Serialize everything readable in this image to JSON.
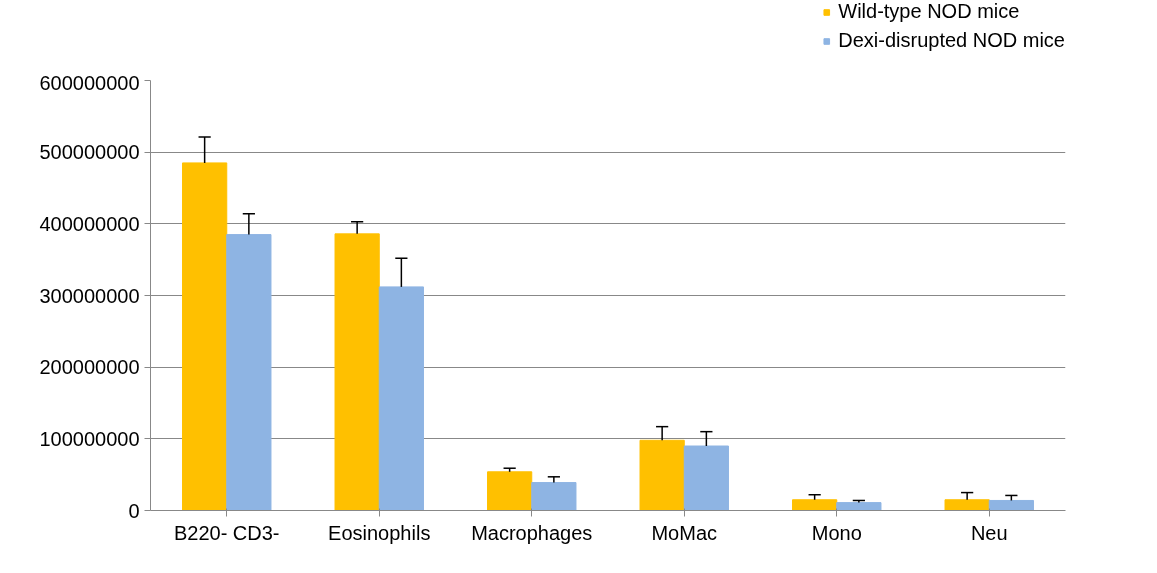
{
  "chart_data": {
    "type": "bar",
    "categories": [
      "B220- CD3-",
      "Eosinophils",
      "Macrophages",
      "MoMac",
      "Mono",
      "Neu"
    ],
    "series": [
      {
        "name": "Wild-type NOD mice",
        "color": "#ffc000",
        "values": [
          485000000,
          386000000,
          54000000,
          98000000,
          15000000,
          15000000
        ],
        "errors": [
          [
            485000000,
            521000000
          ],
          [
            386000000,
            403000000
          ],
          [
            54000000,
            59000000
          ],
          [
            98000000,
            117000000
          ],
          [
            15000000,
            22000000
          ],
          [
            15000000,
            25000000
          ]
        ]
      },
      {
        "name": "Dexi-disrupted NOD mice",
        "color": "#8eb4e3",
        "values": [
          385000000,
          312000000,
          39000000,
          90000000,
          11000000,
          14000000
        ],
        "errors": [
          [
            385000000,
            414000000
          ],
          [
            312000000,
            352000000
          ],
          [
            39000000,
            47000000
          ],
          [
            90000000,
            110000000
          ],
          [
            11000000,
            14000000
          ],
          [
            14000000,
            21000000
          ]
        ]
      }
    ],
    "ylim": [
      0,
      600000000
    ],
    "yticks": [
      0,
      100000000,
      200000000,
      300000000,
      400000000,
      500000000,
      600000000
    ],
    "grid": "y",
    "legend": "top right"
  }
}
